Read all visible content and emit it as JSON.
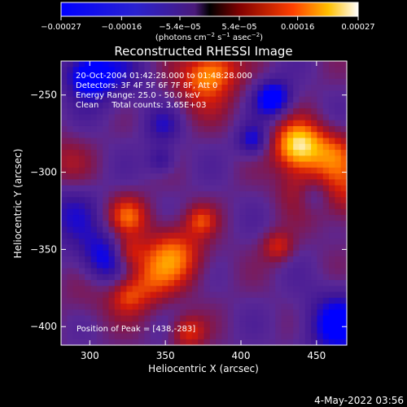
{
  "chart_data": {
    "type": "heatmap",
    "title": "Reconstructed RHESSI Image",
    "xlabel": "Heliocentric X (arcsec)",
    "ylabel": "Heliocentric Y (arcsec)",
    "xlim": [
      281,
      470
    ],
    "ylim": [
      -412,
      -228
    ],
    "x_ticks": [
      300,
      350,
      400,
      450
    ],
    "x_tick_labels": [
      "300",
      "350",
      "400",
      "450"
    ],
    "y_ticks": [
      -250,
      -300,
      -350,
      -400
    ],
    "y_tick_labels": [
      "−250",
      "−300",
      "−350",
      "−400"
    ],
    "colorbar": {
      "range": [
        -0.00027,
        0.00027
      ],
      "ticks": [
        -0.00027,
        -0.00016,
        -5.4e-05,
        5.4e-05,
        0.00016,
        0.00027
      ],
      "tick_labels": [
        "−0.00027",
        "−0.00016",
        "−5.4e−05",
        "5.4e−05",
        "0.00016",
        "0.00027"
      ],
      "units": "(photons cm",
      "units_sup1": "−2",
      "units_mid1": " s",
      "units_sup2": "−1",
      "units_mid2": " asec",
      "units_sup3": "−2",
      "units_end": ")"
    },
    "peak_xy": [
      438,
      -283
    ],
    "grid": false,
    "colormap": [
      "#0000ff",
      "#5a1a8e",
      "#7a2e9e",
      "#cc1010",
      "#ff5a00",
      "#ffc000",
      "#ffffff"
    ]
  },
  "annotations": {
    "time_range": "20-Oct-2004 01:42:28.000 to 01:48:28.000",
    "detectors": "Detectors: 3F 4F 5F 6F 7F 8F, Att 0",
    "energy": "Energy Range: 25.0 - 50.0 keV",
    "clean": "Clean     Total counts: 3.65E+03",
    "peak_text": "Position of Peak = [438,-283]"
  },
  "footer_date": "4-May-2022 03:56"
}
